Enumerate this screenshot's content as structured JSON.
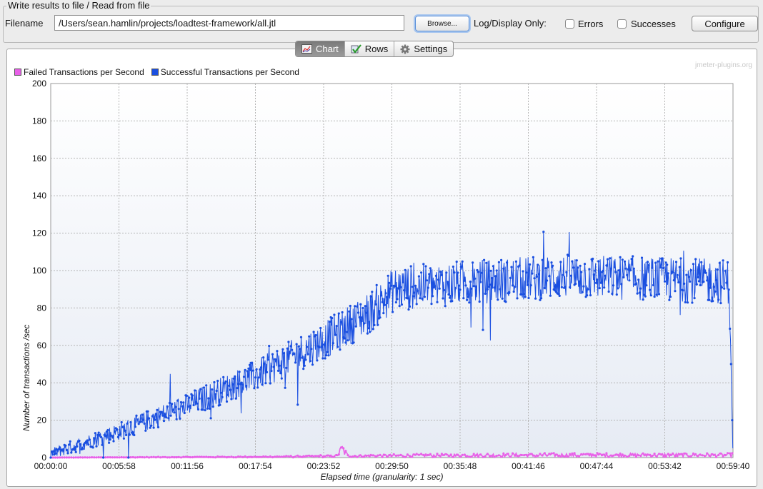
{
  "file_panel": {
    "title": "Write results to file / Read from file",
    "filename_label": "Filename",
    "filename_value": "/Users/sean.hamlin/projects/loadtest-framework/all.jtl",
    "browse_label": "Browse...",
    "log_display_label": "Log/Display Only:",
    "errors_label": "Errors",
    "errors_checked": false,
    "successes_label": "Successes",
    "successes_checked": false,
    "configure_label": "Configure"
  },
  "tabs": [
    {
      "label": "Chart",
      "icon": "chart-icon",
      "active": true
    },
    {
      "label": "Rows",
      "icon": "checkmark-icon",
      "active": false
    },
    {
      "label": "Settings",
      "icon": "gear-icon",
      "active": false
    }
  ],
  "chart": {
    "watermark": "jmeter-plugins.org",
    "xlabel": "Elapsed time (granularity: 1 sec)",
    "ylabel": "Number of transactions /sec"
  },
  "chart_data": {
    "type": "line",
    "x_unit": "seconds elapsed",
    "xlim": [
      0,
      3580
    ],
    "ylim": [
      0,
      200
    ],
    "y_ticks": [
      0,
      20,
      40,
      60,
      80,
      100,
      120,
      140,
      160,
      180,
      200
    ],
    "x_tick_labels": [
      "00:00:00",
      "00:05:58",
      "00:11:56",
      "00:17:54",
      "00:23:52",
      "00:29:50",
      "00:35:48",
      "00:41:46",
      "00:47:44",
      "00:53:42",
      "00:59:40"
    ],
    "grid": true,
    "legend": "top-left",
    "series": [
      {
        "name": "Failed Transactions per Second",
        "color": "#e860e8",
        "approx_values": {
          "x": [
            0,
            1200,
            1500,
            1530,
            1560,
            2400,
            3580
          ],
          "y": [
            0,
            0.5,
            1,
            5,
            1,
            1.5,
            1.5
          ]
        }
      },
      {
        "name": "Successful Transactions per Second",
        "color": "#1a4fe0",
        "approx_values": {
          "x": [
            0,
            360,
            720,
            1080,
            1440,
            1680,
            1800,
            2100,
            2400,
            2700,
            3000,
            3300,
            3560,
            3570,
            3580
          ],
          "y": [
            2,
            14,
            28,
            44,
            63,
            78,
            90,
            93,
            95,
            97,
            96,
            95,
            94,
            50,
            0
          ]
        }
      }
    ]
  }
}
